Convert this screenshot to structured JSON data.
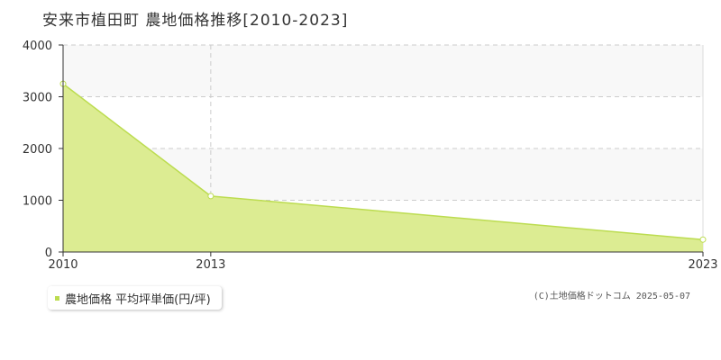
{
  "title": "安来市植田町 農地価格推移[2010-2023]",
  "legend": {
    "label": "農地価格 平均坪単価(円/坪)"
  },
  "copyright": "(C)土地価格ドットコム 2025-05-07",
  "colors": {
    "area_fill": "#dcec92",
    "line": "#bcdc50",
    "point_fill": "#ffffff",
    "grid": "#cccccc",
    "band": "#f8f8f8",
    "legend_swatch": "#bcdc50"
  },
  "chart_data": {
    "type": "area",
    "title": "安来市植田町 農地価格推移[2010-2023]",
    "x": [
      2010,
      2013,
      2023
    ],
    "x_ticks": [
      "2010",
      "2013",
      "2023"
    ],
    "y_ticks": [
      "0",
      "1000",
      "2000",
      "3000",
      "4000"
    ],
    "ylim": [
      0,
      4000
    ],
    "xlim": [
      2010,
      2023
    ],
    "grid": true,
    "legend_position": "bottom-left",
    "series": [
      {
        "name": "農地価格 平均坪単価(円/坪)",
        "values": [
          3250,
          1080,
          240
        ]
      }
    ]
  }
}
